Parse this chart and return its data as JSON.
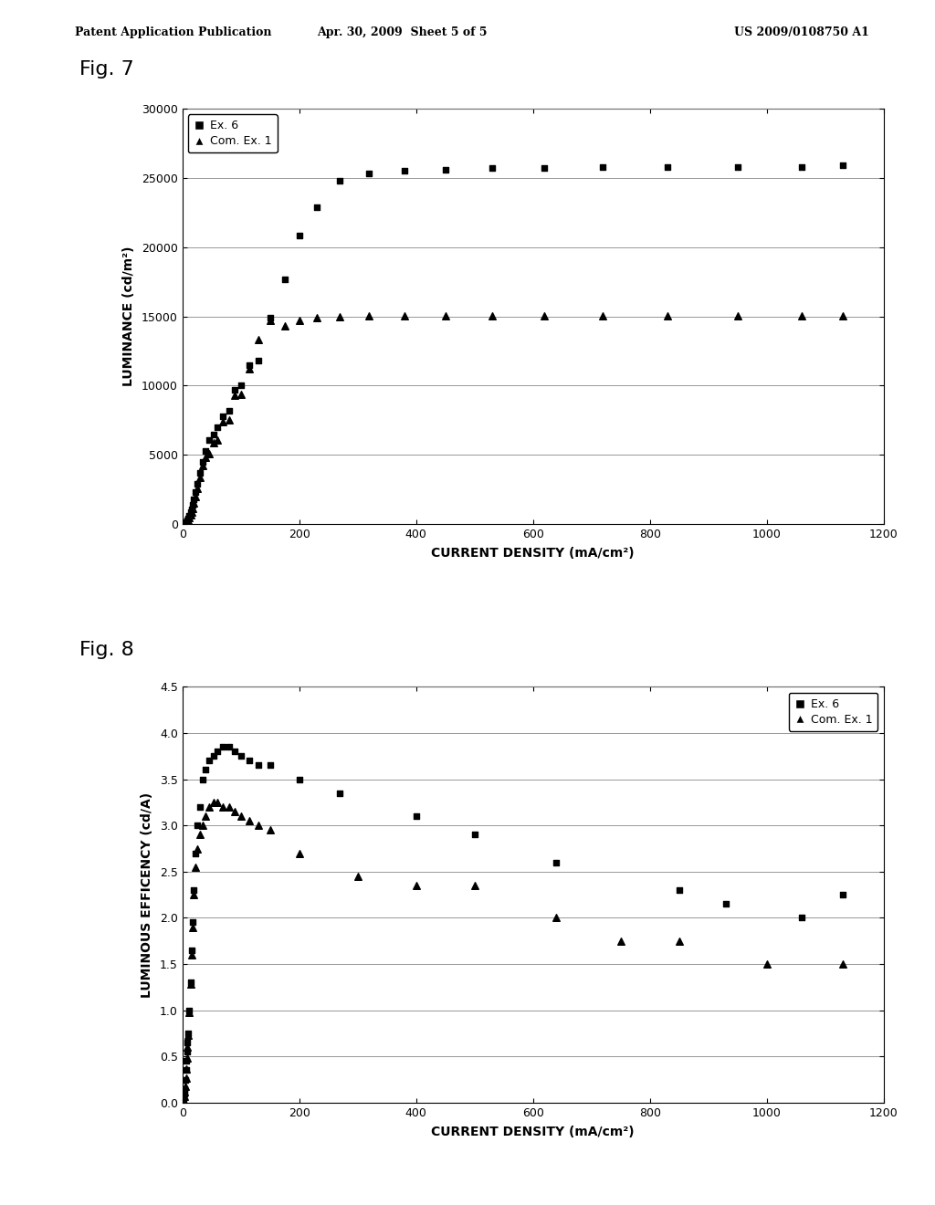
{
  "fig7": {
    "title": "Fig. 7",
    "xlabel": "CURRENT DENSITY (mA/cm²)",
    "ylabel": "LUMINANCE (cd/m²)",
    "xlim": [
      0,
      1200
    ],
    "ylim": [
      0,
      30000
    ],
    "xticks": [
      0,
      200,
      400,
      600,
      800,
      1000,
      1200
    ],
    "yticks": [
      0,
      5000,
      10000,
      15000,
      20000,
      25000,
      30000
    ],
    "ex6_x": [
      2,
      3,
      4,
      5,
      6,
      7,
      8,
      9,
      10,
      12,
      14,
      16,
      18,
      20,
      23,
      26,
      30,
      35,
      40,
      46,
      53,
      60,
      70,
      80,
      90,
      100,
      115,
      130,
      150,
      175,
      200,
      230,
      270,
      320,
      380,
      450,
      530,
      620,
      720,
      830,
      950,
      1060,
      1130
    ],
    "ex6_y": [
      10,
      20,
      40,
      70,
      110,
      160,
      220,
      300,
      400,
      600,
      850,
      1100,
      1400,
      1800,
      2300,
      2900,
      3700,
      4500,
      5300,
      6100,
      6500,
      7000,
      7800,
      8200,
      9700,
      10000,
      11500,
      11800,
      14900,
      17700,
      20800,
      22900,
      24800,
      25300,
      25500,
      25600,
      25700,
      25700,
      25800,
      25800,
      25800,
      25800,
      25900
    ],
    "com1_x": [
      2,
      3,
      4,
      5,
      6,
      7,
      8,
      9,
      10,
      12,
      14,
      16,
      18,
      20,
      23,
      26,
      30,
      35,
      40,
      46,
      53,
      60,
      70,
      80,
      90,
      100,
      115,
      130,
      150,
      175,
      200,
      230,
      270,
      320,
      380,
      450,
      530,
      620,
      720,
      830,
      950,
      1060,
      1130
    ],
    "com1_y": [
      5,
      10,
      20,
      40,
      70,
      110,
      160,
      220,
      300,
      450,
      650,
      900,
      1150,
      1500,
      2000,
      2600,
      3400,
      4200,
      4800,
      5100,
      5900,
      6100,
      7400,
      7500,
      9300,
      9400,
      11200,
      13300,
      14700,
      14300,
      14700,
      14900,
      15000,
      15050,
      15050,
      15050,
      15050,
      15050,
      15050,
      15050,
      15050,
      15050,
      15050
    ],
    "legend_ex6": "Ex. 6",
    "legend_com1": "Com. Ex. 1"
  },
  "fig8": {
    "title": "Fig. 8",
    "xlabel": "CURRENT DENSITY (mA/cm²)",
    "ylabel": "LUMINOUS EFFICENCY (cd/A)",
    "xlim": [
      0,
      1200
    ],
    "ylim": [
      0,
      4.5
    ],
    "xticks": [
      0,
      200,
      400,
      600,
      800,
      1000,
      1200
    ],
    "yticks": [
      0,
      0.5,
      1.0,
      1.5,
      2.0,
      2.5,
      3.0,
      3.5,
      4.0,
      4.5
    ],
    "ex6_x": [
      2,
      3,
      4,
      5,
      6,
      7,
      8,
      9,
      10,
      12,
      14,
      16,
      18,
      20,
      23,
      26,
      30,
      35,
      40,
      46,
      53,
      60,
      70,
      80,
      90,
      100,
      115,
      130,
      150,
      200,
      270,
      400,
      500,
      640,
      850,
      930,
      1060,
      1130
    ],
    "ex6_y": [
      0.05,
      0.1,
      0.15,
      0.25,
      0.35,
      0.45,
      0.55,
      0.65,
      0.75,
      1.0,
      1.3,
      1.65,
      1.95,
      2.3,
      2.7,
      3.0,
      3.2,
      3.5,
      3.6,
      3.7,
      3.75,
      3.8,
      3.85,
      3.85,
      3.8,
      3.75,
      3.7,
      3.65,
      3.65,
      3.5,
      3.35,
      3.1,
      2.9,
      2.6,
      2.3,
      2.15,
      2.0,
      2.25
    ],
    "com1_x": [
      2,
      3,
      4,
      5,
      6,
      7,
      8,
      9,
      10,
      12,
      14,
      16,
      18,
      20,
      23,
      26,
      30,
      35,
      40,
      46,
      53,
      60,
      70,
      80,
      90,
      100,
      115,
      130,
      150,
      200,
      300,
      400,
      500,
      640,
      750,
      850,
      1000,
      1130
    ],
    "com1_y": [
      0.03,
      0.07,
      0.12,
      0.18,
      0.26,
      0.36,
      0.48,
      0.6,
      0.73,
      0.98,
      1.28,
      1.6,
      1.9,
      2.25,
      2.55,
      2.75,
      2.9,
      3.0,
      3.1,
      3.2,
      3.25,
      3.25,
      3.2,
      3.2,
      3.15,
      3.1,
      3.05,
      3.0,
      2.95,
      2.7,
      2.45,
      2.35,
      2.35,
      2.0,
      1.75,
      1.75,
      1.5,
      1.5
    ],
    "legend_ex6": "Ex. 6",
    "legend_com1": "Com. Ex. 1"
  },
  "header_left": "Patent Application Publication",
  "header_center": "Apr. 30, 2009  Sheet 5 of 5",
  "header_right": "US 2009/0108750 A1",
  "background_color": "#ffffff",
  "marker_color": "#000000"
}
